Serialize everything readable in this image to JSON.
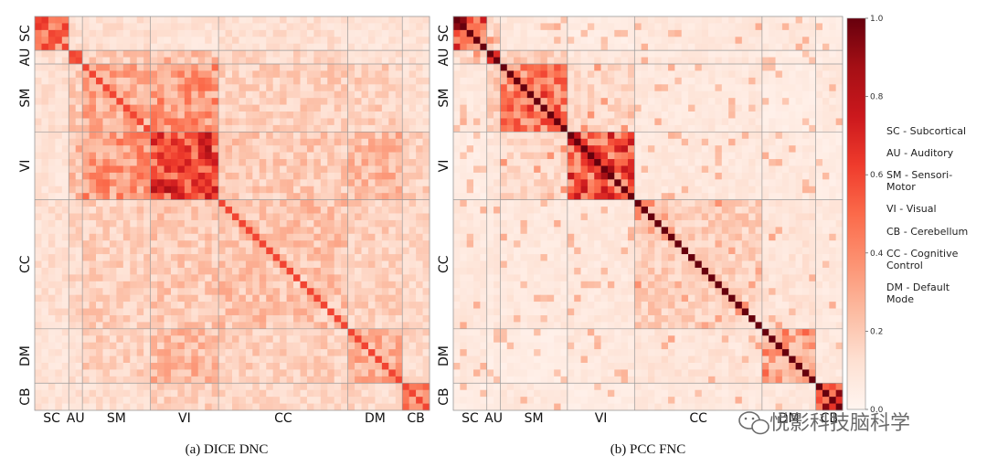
{
  "chart_data": [
    {
      "type": "heatmap",
      "title": "(a) DICE DNC",
      "scale": "0-1",
      "networks": [
        "SC",
        "AU",
        "SM",
        "VI",
        "CC",
        "DM",
        "CB"
      ],
      "network_sizes": [
        5,
        2,
        10,
        10,
        19,
        8,
        4
      ],
      "diagonal_value": 0.6,
      "block_means": [
        [
          0.45,
          0.12,
          0.12,
          0.1,
          0.12,
          0.1,
          0.1
        ],
        [
          0.12,
          0.4,
          0.2,
          0.25,
          0.15,
          0.12,
          0.12
        ],
        [
          0.12,
          0.2,
          0.3,
          0.35,
          0.18,
          0.18,
          0.12
        ],
        [
          0.1,
          0.25,
          0.35,
          0.6,
          0.2,
          0.25,
          0.18
        ],
        [
          0.12,
          0.15,
          0.18,
          0.2,
          0.22,
          0.18,
          0.15
        ],
        [
          0.1,
          0.12,
          0.18,
          0.25,
          0.18,
          0.28,
          0.15
        ],
        [
          0.1,
          0.12,
          0.12,
          0.18,
          0.15,
          0.15,
          0.4
        ]
      ]
    },
    {
      "type": "heatmap",
      "title": "(b) PCC FNC",
      "scale": "0-1",
      "networks": [
        "SC",
        "AU",
        "SM",
        "VI",
        "CC",
        "DM",
        "CB"
      ],
      "network_sizes": [
        5,
        2,
        10,
        10,
        19,
        8,
        4
      ],
      "diagonal_value": 1.0,
      "block_means": [
        [
          0.55,
          0.15,
          0.08,
          0.05,
          0.08,
          0.08,
          0.05
        ],
        [
          0.15,
          0.55,
          0.2,
          0.1,
          0.08,
          0.05,
          0.05
        ],
        [
          0.08,
          0.2,
          0.45,
          0.15,
          0.08,
          0.05,
          0.08
        ],
        [
          0.05,
          0.1,
          0.15,
          0.55,
          0.08,
          0.08,
          0.05
        ],
        [
          0.08,
          0.08,
          0.08,
          0.08,
          0.18,
          0.1,
          0.08
        ],
        [
          0.08,
          0.05,
          0.05,
          0.08,
          0.1,
          0.3,
          0.08
        ],
        [
          0.05,
          0.05,
          0.08,
          0.05,
          0.08,
          0.08,
          0.65
        ]
      ]
    }
  ],
  "colorbar": {
    "ticks": [
      "0.0",
      "0.2",
      "0.4",
      "0.6",
      "0.8",
      "1.0"
    ],
    "values": [
      0,
      0.2,
      0.4,
      0.6,
      0.8,
      1.0
    ],
    "low_color": "#fff5f0",
    "high_color": "#67000d"
  },
  "legend": [
    [
      "SC - Subcortical"
    ],
    [
      "AU - Auditory"
    ],
    [
      "SM - Sensori-",
      "Motor"
    ],
    [
      "VI - Visual"
    ],
    [
      "CB - Cerebellum"
    ],
    [
      "CC - Cognitive",
      "Control"
    ],
    [
      "DM - Default",
      "Mode"
    ]
  ],
  "watermark": "悦影科技脑科学"
}
